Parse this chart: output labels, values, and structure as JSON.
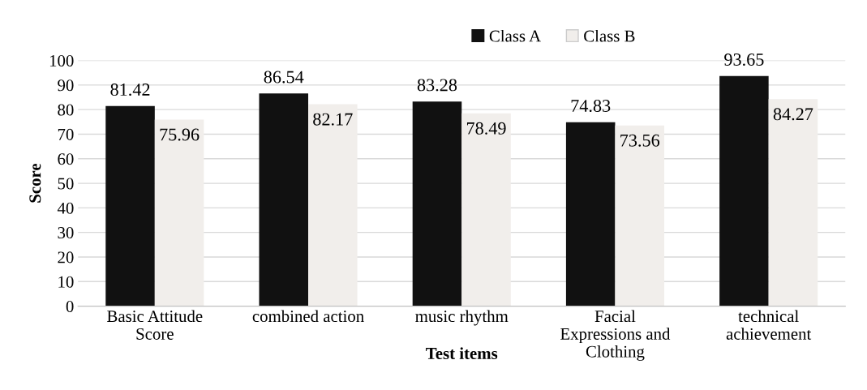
{
  "chart_data": {
    "type": "bar",
    "xlabel": "Test items",
    "ylabel": "Score",
    "categories": [
      "Basic Attitude Score",
      "combined action",
      "music rhythm",
      "Facial Expressions and Clothing",
      "technical achievement"
    ],
    "series": [
      {
        "name": "Class A",
        "color": "#111111",
        "values": [
          81.42,
          86.54,
          83.28,
          74.83,
          93.65
        ]
      },
      {
        "name": "Class B",
        "color": "#f1eeeb",
        "values": [
          75.96,
          82.17,
          78.49,
          73.56,
          84.27
        ]
      }
    ],
    "ylim": [
      0,
      100
    ],
    "yticks": [
      0,
      10,
      20,
      30,
      40,
      50,
      60,
      70,
      80,
      90,
      100
    ],
    "grid": "y",
    "legend": "top",
    "data_labels": true
  }
}
